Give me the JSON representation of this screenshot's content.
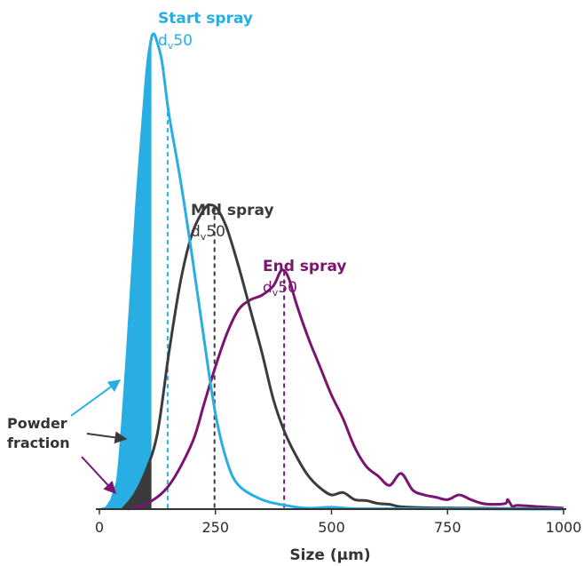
{
  "chart_data": {
    "type": "line",
    "xlabel": "Size (μm)",
    "ylabel": "",
    "xlim": [
      0,
      1000
    ],
    "x_ticks": [
      "0",
      "250",
      "500",
      "750",
      "1000"
    ],
    "y_axis_visible": false,
    "grid": false,
    "colors": {
      "start": "#29aee3",
      "mid": "#3b3b3b",
      "end": "#7b1370",
      "fill_start": "#29aee3",
      "fill_mid": "#3b3b3b"
    },
    "series": [
      {
        "name": "Start spray",
        "color": "#29aee3",
        "dv50_label": "dv50",
        "dv50": 147,
        "points": [
          [
            5,
            0.0
          ],
          [
            20,
            0.01
          ],
          [
            40,
            0.07
          ],
          [
            60,
            0.33
          ],
          [
            80,
            0.64
          ],
          [
            100,
            0.9
          ],
          [
            110,
            0.98
          ],
          [
            117,
            1.0
          ],
          [
            125,
            0.98
          ],
          [
            135,
            0.94
          ],
          [
            150,
            0.83
          ],
          [
            175,
            0.69
          ],
          [
            200,
            0.53
          ],
          [
            225,
            0.36
          ],
          [
            250,
            0.2
          ],
          [
            275,
            0.1
          ],
          [
            300,
            0.05
          ],
          [
            350,
            0.02
          ],
          [
            400,
            0.008
          ],
          [
            450,
            0.002
          ],
          [
            500,
            0.004
          ],
          [
            550,
            0.001
          ],
          [
            650,
            0.001
          ],
          [
            1000,
            0.0
          ]
        ]
      },
      {
        "name": "Mid spray",
        "color": "#3b3b3b",
        "dv50_label": "dv50",
        "dv50": 248,
        "points": [
          [
            50,
            0.0
          ],
          [
            75,
            0.03
          ],
          [
            100,
            0.08
          ],
          [
            125,
            0.16
          ],
          [
            150,
            0.33
          ],
          [
            175,
            0.48
          ],
          [
            200,
            0.58
          ],
          [
            225,
            0.63
          ],
          [
            240,
            0.64
          ],
          [
            255,
            0.63
          ],
          [
            275,
            0.59
          ],
          [
            300,
            0.51
          ],
          [
            325,
            0.42
          ],
          [
            350,
            0.33
          ],
          [
            375,
            0.23
          ],
          [
            400,
            0.16
          ],
          [
            425,
            0.11
          ],
          [
            450,
            0.07
          ],
          [
            475,
            0.045
          ],
          [
            500,
            0.03
          ],
          [
            525,
            0.035
          ],
          [
            550,
            0.02
          ],
          [
            575,
            0.018
          ],
          [
            600,
            0.012
          ],
          [
            625,
            0.01
          ],
          [
            650,
            0.005
          ],
          [
            700,
            0.003
          ],
          [
            800,
            0.002
          ],
          [
            1000,
            0.0
          ]
        ]
      },
      {
        "name": "End spray",
        "color": "#7b1370",
        "dv50_label": "dv50",
        "dv50": 398,
        "points": [
          [
            60,
            0.0
          ],
          [
            100,
            0.01
          ],
          [
            150,
            0.05
          ],
          [
            200,
            0.14
          ],
          [
            225,
            0.22
          ],
          [
            250,
            0.3
          ],
          [
            275,
            0.37
          ],
          [
            300,
            0.42
          ],
          [
            325,
            0.44
          ],
          [
            350,
            0.45
          ],
          [
            375,
            0.47
          ],
          [
            390,
            0.5
          ],
          [
            400,
            0.5
          ],
          [
            410,
            0.48
          ],
          [
            425,
            0.43
          ],
          [
            450,
            0.36
          ],
          [
            475,
            0.3
          ],
          [
            500,
            0.24
          ],
          [
            525,
            0.19
          ],
          [
            550,
            0.13
          ],
          [
            575,
            0.09
          ],
          [
            600,
            0.07
          ],
          [
            625,
            0.05
          ],
          [
            650,
            0.075
          ],
          [
            675,
            0.04
          ],
          [
            700,
            0.03
          ],
          [
            725,
            0.025
          ],
          [
            750,
            0.02
          ],
          [
            775,
            0.03
          ],
          [
            800,
            0.02
          ],
          [
            825,
            0.012
          ],
          [
            850,
            0.01
          ],
          [
            875,
            0.012
          ],
          [
            880,
            0.02
          ],
          [
            890,
            0.005
          ],
          [
            900,
            0.008
          ],
          [
            950,
            0.005
          ],
          [
            1000,
            0.002
          ]
        ]
      }
    ],
    "annotations": {
      "powder_fraction": [
        "Powder",
        "fraction"
      ],
      "fraction_cutoff": 112
    }
  }
}
